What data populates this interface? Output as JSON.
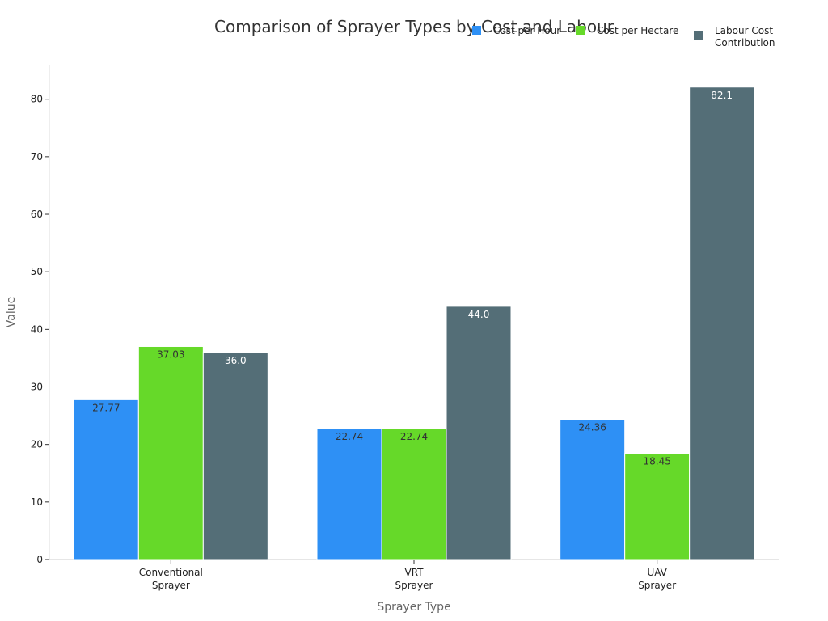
{
  "chart_data": {
    "type": "bar",
    "title": "Comparison of Sprayer Types by Cost and Labour",
    "xlabel": "Sprayer Type",
    "ylabel": "Value",
    "ylim": [
      0,
      86
    ],
    "yticks": [
      0,
      10,
      20,
      30,
      40,
      50,
      60,
      70,
      80
    ],
    "categories": [
      [
        "Conventional",
        "Sprayer"
      ],
      [
        "VRT",
        "Sprayer"
      ],
      [
        "UAV",
        "Sprayer"
      ]
    ],
    "series": [
      {
        "name": "Cost per Hour",
        "color": "#2e90f5",
        "label_color": "#333333",
        "values": [
          27.77,
          22.74,
          24.36
        ],
        "labels": [
          "27.77",
          "22.74",
          "24.36"
        ]
      },
      {
        "name": "Cost per Hectare",
        "color": "#66d929",
        "label_color": "#333333",
        "values": [
          37.03,
          22.74,
          18.45
        ],
        "labels": [
          "37.03",
          "22.74",
          "18.45"
        ]
      },
      {
        "name": "Labour Cost Contribution",
        "legend_lines": [
          "Labour Cost",
          "Contribution"
        ],
        "color": "#546e77",
        "label_color": "#ffffff",
        "values": [
          36.0,
          44.0,
          82.1
        ],
        "labels": [
          "36.0",
          "44.0",
          "82.1"
        ]
      }
    ],
    "grid": false,
    "legend_position": "top-right"
  }
}
